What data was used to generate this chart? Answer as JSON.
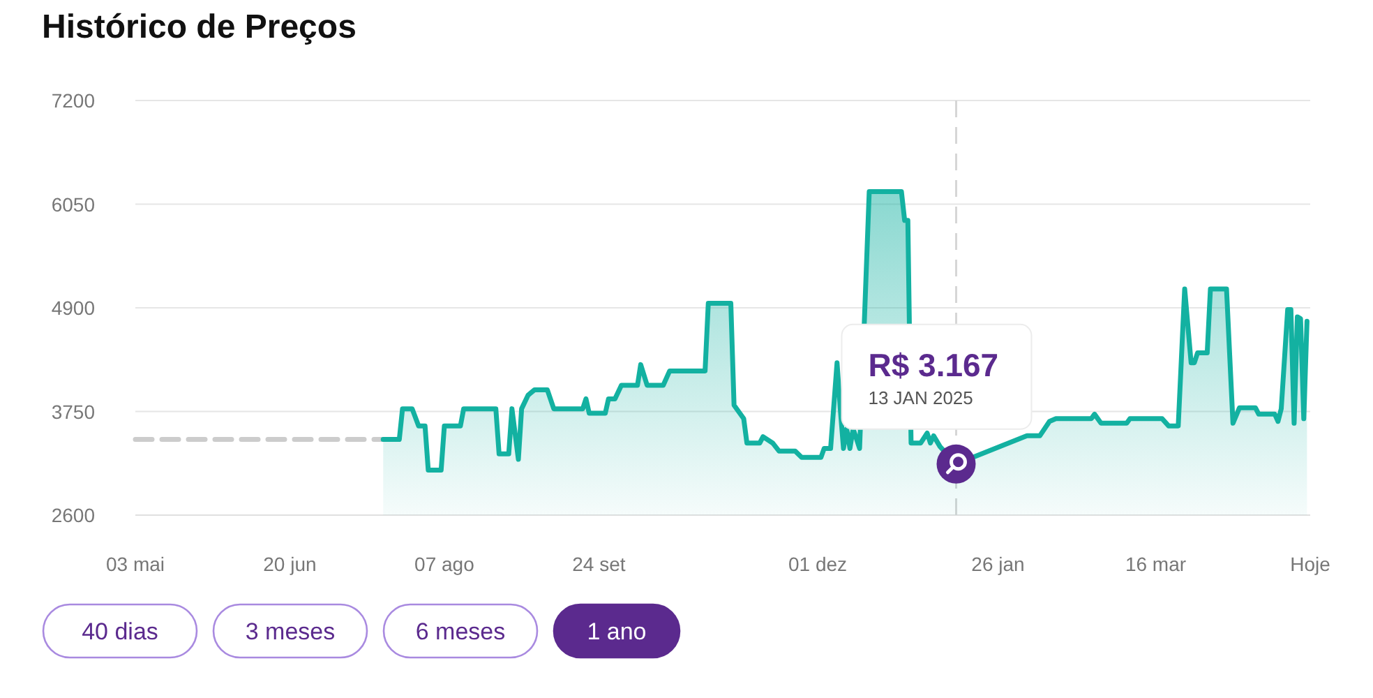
{
  "chart_data": {
    "type": "line",
    "title": "Histórico de Preços",
    "xlim": [
      "2024-05-03",
      "2025-05-03"
    ],
    "xticks": [
      {
        "value": "2024-05-03",
        "label": "03 mai"
      },
      {
        "value": "2024-06-20",
        "label": "20 jun"
      },
      {
        "value": "2024-08-07",
        "label": "07 ago"
      },
      {
        "value": "2024-09-24",
        "label": "24 set"
      },
      {
        "value": "2024-12-01",
        "label": "01 dez"
      },
      {
        "value": "2025-01-26",
        "label": "26 jan"
      },
      {
        "value": "2025-03-16",
        "label": "16 mar"
      },
      {
        "value": "2025-05-03",
        "label": "Hoje"
      }
    ],
    "ylim": [
      2600,
      7200
    ],
    "yticks": [
      2600,
      3750,
      4900,
      6050,
      7200
    ],
    "grid": "y",
    "series": [
      {
        "color": "#cccccc",
        "line_style": "dashed",
        "x": [
          "2024-05-03",
          "2024-07-19"
        ],
        "values": [
          3440,
          3440
        ]
      },
      {
        "type": "area",
        "color": "#13b1a1",
        "x": [
          "2024-07-19",
          "2024-07-24",
          "2024-07-25",
          "2024-07-28",
          "2024-07-30",
          "2024-08-01",
          "2024-08-02",
          "2024-08-06",
          "2024-08-07",
          "2024-08-12",
          "2024-08-13",
          "2024-08-23",
          "2024-08-24",
          "2024-08-27",
          "2024-08-28",
          "2024-08-30",
          "2024-08-31",
          "2024-09-02",
          "2024-09-04",
          "2024-09-08",
          "2024-09-10",
          "2024-09-19",
          "2024-09-20",
          "2024-09-21",
          "2024-09-26",
          "2024-09-27",
          "2024-09-29",
          "2024-10-01",
          "2024-10-06",
          "2024-10-07",
          "2024-10-09",
          "2024-10-14",
          "2024-10-16",
          "2024-10-27",
          "2024-10-28",
          "2024-11-04",
          "2024-11-05",
          "2024-11-08",
          "2024-11-09",
          "2024-11-13",
          "2024-11-14",
          "2024-11-17",
          "2024-11-19",
          "2024-11-24",
          "2024-11-26",
          "2024-12-02",
          "2024-12-03",
          "2024-12-05",
          "2024-12-07",
          "2024-12-08",
          "2024-12-09",
          "2024-12-10",
          "2024-12-11",
          "2024-12-12",
          "2024-12-14",
          "2024-12-17",
          "2024-12-27",
          "2024-12-28",
          "2024-12-29",
          "2024-12-30",
          "2025-01-02",
          "2025-01-04",
          "2025-01-05",
          "2025-01-06",
          "2025-01-08",
          "2025-01-13",
          "2025-02-04",
          "2025-02-08",
          "2025-02-11",
          "2025-02-13",
          "2025-02-24",
          "2025-02-25",
          "2025-02-27",
          "2025-03-07",
          "2025-03-08",
          "2025-03-18",
          "2025-03-20",
          "2025-03-23",
          "2025-03-25",
          "2025-03-27",
          "2025-03-28",
          "2025-03-29",
          "2025-04-01",
          "2025-04-02",
          "2025-04-07",
          "2025-04-09",
          "2025-04-11",
          "2025-04-16",
          "2025-04-17",
          "2025-04-22",
          "2025-04-23",
          "2025-04-24",
          "2025-04-26",
          "2025-04-27",
          "2025-04-28",
          "2025-04-29",
          "2025-04-30",
          "2025-05-01",
          "2025-05-02"
        ],
        "values": [
          3440,
          3440,
          3780,
          3780,
          3590,
          3590,
          3100,
          3100,
          3590,
          3590,
          3780,
          3780,
          3280,
          3280,
          3780,
          3220,
          3780,
          3930,
          3990,
          3990,
          3780,
          3780,
          3890,
          3730,
          3730,
          3890,
          3890,
          4040,
          4040,
          4270,
          4040,
          4040,
          4200,
          4200,
          4950,
          4950,
          3820,
          3670,
          3400,
          3400,
          3470,
          3400,
          3310,
          3310,
          3240,
          3240,
          3340,
          3340,
          4290,
          3780,
          3340,
          3560,
          3340,
          3560,
          3340,
          6190,
          6190,
          5870,
          5870,
          3400,
          3400,
          3510,
          3400,
          3480,
          3360,
          3167,
          3480,
          3480,
          3640,
          3670,
          3670,
          3720,
          3620,
          3620,
          3670,
          3670,
          3590,
          3590,
          5110,
          4290,
          4290,
          4400,
          4400,
          5110,
          5110,
          3620,
          3790,
          3790,
          3720,
          3720,
          3640,
          3780,
          4880,
          4880,
          3620,
          4800,
          4780,
          3670,
          4750
        ]
      }
    ],
    "ref_lines": [
      {
        "axis": "x",
        "value": "2025-01-13",
        "color": "#d6d6d6",
        "line_style": "dashed"
      }
    ],
    "annotations": [
      {
        "text": "R$ 3.167",
        "x": "2025-01-13",
        "y": 3167
      },
      "13 JAN 2025",
      "40 dias",
      "3 meses",
      "6 meses",
      "1 ano"
    ]
  }
}
